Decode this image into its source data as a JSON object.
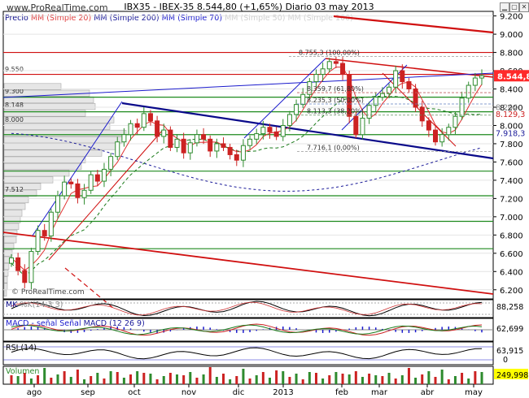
{
  "header": {
    "brand": "www.ProRealTime.com",
    "title": "IBX35 - IBEX-35    8.544,80 (+1,65%)   Diario  03 may 2013",
    "watermark": "© ProRealTime.com"
  },
  "legend": {
    "price": "Precio",
    "ma20": "MM (Simple 20)",
    "ma200": "MM (Simple 200)",
    "ma70": "MM (Simple 70)",
    "faint": "MM (Simple 50)  MM (Simple 100)"
  },
  "colors": {
    "up": "#2e8b2e",
    "down": "#cc2222",
    "ma20": "#e03030",
    "ma200": "#1a1a99",
    "ma70": "#1a7a1a",
    "support": "#1e8a1e",
    "resistance": "#d01010",
    "trend": "#0a0a8a",
    "channel": "#1a1acc",
    "last_price_bg": "#ff2a2a"
  },
  "chart_data": {
    "type": "candlestick",
    "x_labels": [
      "ago",
      "sep",
      "oct",
      "nov",
      "dic",
      "2013",
      "feb",
      "mar",
      "abr",
      "may"
    ],
    "y_ticks": [
      "9.200",
      "9.000",
      "8.800",
      "8.600",
      "8.400",
      "8.200",
      "8.000",
      "7.800",
      "7.600",
      "7.400",
      "7.200",
      "7.000",
      "6.800",
      "6.600",
      "6.400",
      "6.200"
    ],
    "ylim": [
      6100,
      9250
    ],
    "last_price": "8.544,80",
    "right_labels": [
      "8.129,3",
      "7.918,3",
      "8.204"
    ],
    "fib_labels": [
      "8.755,3 (100,00%)",
      "8.359,7 (61,80%)",
      "8.235,3 (50,00%)",
      "8.113,3 (38,20%)",
      "7.716,1 (0,00%)"
    ],
    "volume_profile_labels": [
      "9.550",
      "9.300",
      "8.148",
      "8.000",
      "7.512"
    ],
    "closes": [
      6550,
      6410,
      6280,
      6620,
      6850,
      6790,
      7050,
      7230,
      7380,
      7360,
      7210,
      7290,
      7460,
      7390,
      7520,
      7660,
      7820,
      7900,
      8020,
      7980,
      8130,
      8050,
      7880,
      7950,
      7760,
      7850,
      7700,
      7810,
      7900,
      7850,
      7720,
      7800,
      7760,
      7680,
      7620,
      7780,
      7850,
      7910,
      7980,
      7930,
      7880,
      8000,
      8120,
      8230,
      8340,
      8480,
      8560,
      8620,
      8700,
      8680,
      8560,
      8100,
      7900,
      8080,
      8220,
      8310,
      8350,
      8420,
      8600,
      8480,
      8400,
      8200,
      8050,
      7950,
      7820,
      7900,
      7980,
      8100,
      8300,
      8440,
      8520,
      8545
    ]
  },
  "indicators": {
    "mk": {
      "label": "MK",
      "sub": "%K(14 3 3)",
      "value": "88,258"
    },
    "macd": {
      "label": "MACD -  señal  Señal",
      "sub": "MACD (12 26 9)",
      "value": "62,699"
    },
    "rsi": {
      "label": "RSI (14)",
      "value": "63,915",
      "zero": "0"
    },
    "volume": {
      "label": "Volumen",
      "value": "249,998"
    }
  }
}
